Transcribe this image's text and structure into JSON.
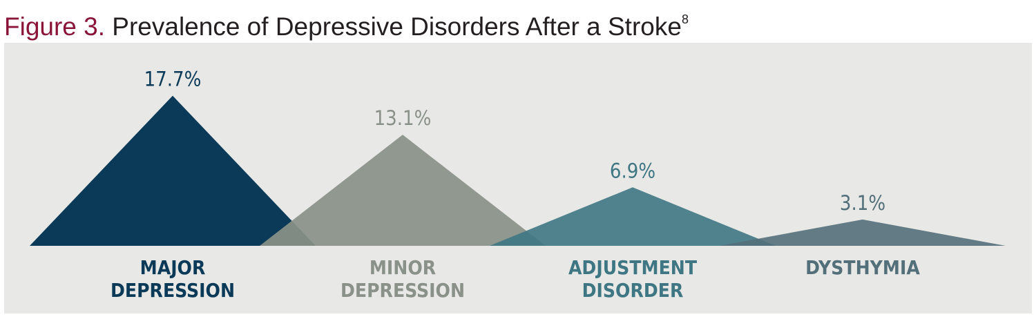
{
  "title": {
    "prefix": "Figure 3.",
    "text": " Prevalence of Depressive Disorders After a Stroke",
    "superscript": "8"
  },
  "colors": {
    "prefix": "#8a1538",
    "title": "#231f20",
    "background": "#e8e8e6",
    "major_depression": "#0b3a58",
    "minor_depression": "#8a9188",
    "adjustment_disorder": "#3e7783",
    "dysthymia": "#536f7a"
  },
  "chart_data": {
    "type": "area",
    "title": "Prevalence of Depressive Disorders After a Stroke",
    "categories": [
      "MAJOR DEPRESSION",
      "MINOR DEPRESSION",
      "ADJUSTMENT DISORDER",
      "DYSTHYMIA"
    ],
    "category_lines": [
      [
        "MAJOR",
        "DEPRESSION"
      ],
      [
        "MINOR",
        "DEPRESSION"
      ],
      [
        "ADJUSTMENT",
        "DISORDER"
      ],
      [
        "DYSTHYMIA"
      ]
    ],
    "values": [
      17.7,
      13.1,
      6.9,
      3.1
    ],
    "value_labels": [
      "17.7%",
      "13.1%",
      "6.9%",
      "3.1%"
    ],
    "unit": "%",
    "grid": false,
    "legend": "none"
  }
}
